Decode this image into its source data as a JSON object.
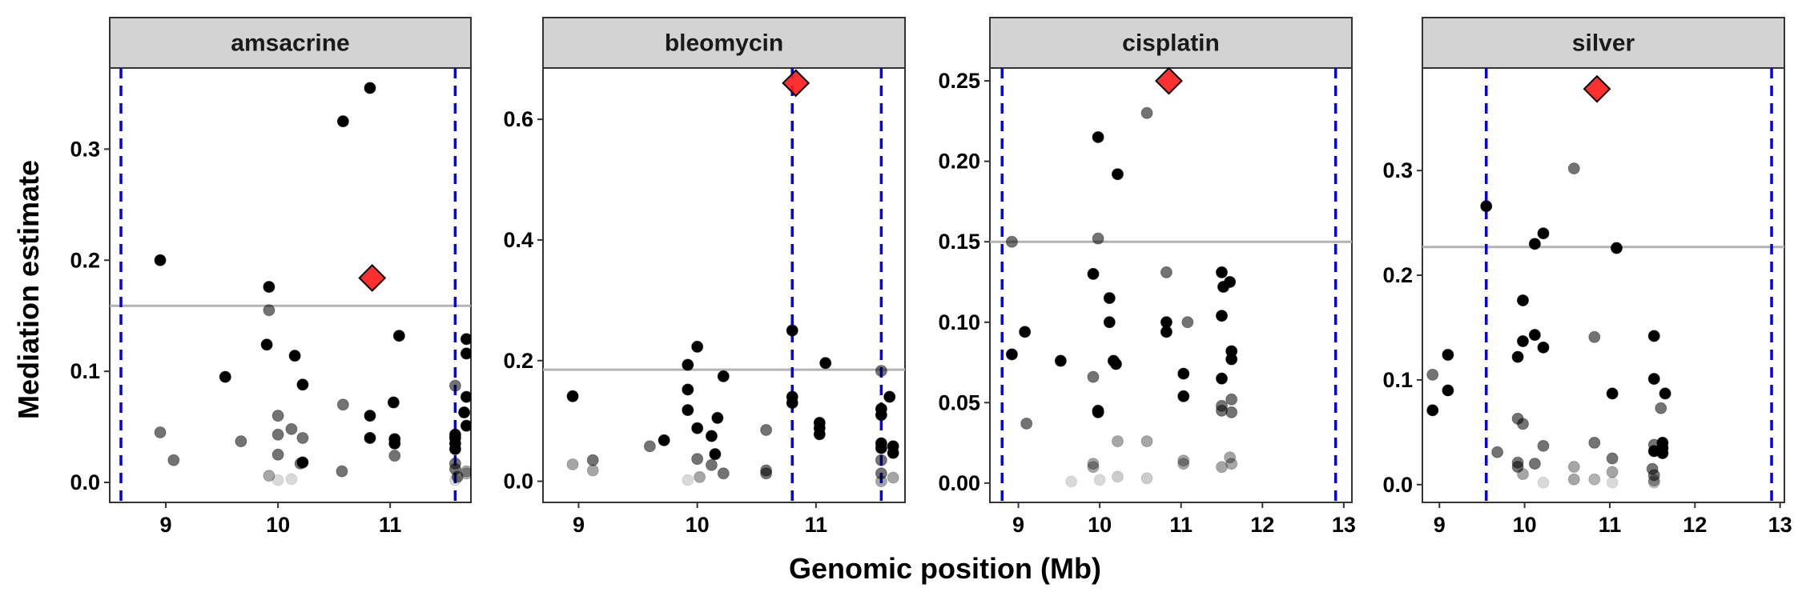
{
  "chart_data": {
    "type": "scatter",
    "xlabel": "Genomic position (Mb)",
    "ylabel": "Mediation estimate",
    "grid": false,
    "colors": {
      "point": "#000000",
      "highlight": "#ff1a1a",
      "threshold": "#b3b3b3",
      "interval": "#0000ee",
      "strip": "#d3d3d3"
    },
    "panels": [
      {
        "title": "amsacrine",
        "xlim": [
          8.5,
          11.72
        ],
        "ylim": [
          -0.018,
          0.373
        ],
        "xticks": [
          9,
          10,
          11
        ],
        "xtick_labels": [
          "9",
          "10",
          "11"
        ],
        "yticks": [
          0,
          0.1,
          0.2,
          0.3
        ],
        "ytick_labels": [
          "0.0",
          "0.1",
          "0.2",
          "0.3"
        ],
        "threshold": 0.159,
        "interval": [
          8.6,
          11.58
        ],
        "highlight": {
          "x": 10.84,
          "y": 0.184
        },
        "points": [
          [
            10.82,
            0.355,
            1
          ],
          [
            10.58,
            0.325,
            1
          ],
          [
            8.95,
            0.2,
            1
          ],
          [
            9.92,
            0.176,
            1
          ],
          [
            9.92,
            0.155,
            0.55
          ],
          [
            9.9,
            0.124,
            1
          ],
          [
            10.15,
            0.114,
            1
          ],
          [
            11.08,
            0.132,
            1
          ],
          [
            11.68,
            0.129,
            1
          ],
          [
            11.68,
            0.116,
            1
          ],
          [
            9.53,
            0.095,
            1
          ],
          [
            10.22,
            0.088,
            1
          ],
          [
            11.58,
            0.087,
            0.55
          ],
          [
            11.68,
            0.077,
            1
          ],
          [
            10.58,
            0.07,
            0.55
          ],
          [
            11.03,
            0.072,
            1
          ],
          [
            10.82,
            0.06,
            1
          ],
          [
            10.0,
            0.06,
            0.55
          ],
          [
            11.66,
            0.063,
            1
          ],
          [
            11.68,
            0.051,
            1
          ],
          [
            10.12,
            0.048,
            0.55
          ],
          [
            8.95,
            0.045,
            0.55
          ],
          [
            10.0,
            0.043,
            0.55
          ],
          [
            10.22,
            0.04,
            0.55
          ],
          [
            11.58,
            0.043,
            1
          ],
          [
            11.58,
            0.04,
            1
          ],
          [
            11.58,
            0.035,
            1
          ],
          [
            11.58,
            0.03,
            1
          ],
          [
            11.04,
            0.039,
            1
          ],
          [
            11.04,
            0.035,
            1
          ],
          [
            10.82,
            0.04,
            1
          ],
          [
            9.67,
            0.037,
            0.55
          ],
          [
            10.0,
            0.025,
            0.55
          ],
          [
            11.04,
            0.024,
            0.55
          ],
          [
            9.07,
            0.02,
            0.55
          ],
          [
            10.22,
            0.018,
            1
          ],
          [
            10.2,
            0.017,
            0.55
          ],
          [
            11.58,
            0.017,
            0.55
          ],
          [
            11.58,
            0.012,
            0.55
          ],
          [
            11.6,
            0.005,
            0.55
          ],
          [
            9.92,
            0.006,
            0.35
          ],
          [
            10.57,
            0.01,
            0.55
          ],
          [
            11.68,
            0.01,
            0.35
          ],
          [
            11.58,
            0.002,
            0.15
          ],
          [
            11.68,
            0.008,
            0.3
          ],
          [
            10.0,
            0.002,
            0.15
          ],
          [
            10.12,
            0.003,
            0.15
          ]
        ]
      },
      {
        "title": "bleomycin",
        "xlim": [
          8.7,
          11.75
        ],
        "ylim": [
          -0.035,
          0.685
        ],
        "xticks": [
          9,
          10,
          11
        ],
        "xtick_labels": [
          "9",
          "10",
          "11"
        ],
        "yticks": [
          0,
          0.2,
          0.4,
          0.6
        ],
        "ytick_labels": [
          "0.0",
          "0.2",
          "0.4",
          "0.6"
        ],
        "threshold": 0.185,
        "interval": [
          10.8,
          11.55
        ],
        "highlight": {
          "x": 10.83,
          "y": 0.66
        },
        "points": [
          [
            10.8,
            0.25,
            1
          ],
          [
            10.0,
            0.223,
            1
          ],
          [
            9.92,
            0.193,
            1
          ],
          [
            11.08,
            0.196,
            1
          ],
          [
            11.55,
            0.183,
            0.55
          ],
          [
            10.22,
            0.174,
            1
          ],
          [
            9.92,
            0.152,
            1
          ],
          [
            8.95,
            0.141,
            1
          ],
          [
            10.8,
            0.14,
            1
          ],
          [
            10.8,
            0.13,
            1
          ],
          [
            11.62,
            0.14,
            1
          ],
          [
            9.92,
            0.118,
            1
          ],
          [
            11.55,
            0.12,
            1
          ],
          [
            11.55,
            0.11,
            1
          ],
          [
            10.17,
            0.105,
            1
          ],
          [
            11.03,
            0.097,
            1
          ],
          [
            11.03,
            0.088,
            1
          ],
          [
            10.0,
            0.088,
            1
          ],
          [
            11.03,
            0.078,
            1
          ],
          [
            10.12,
            0.075,
            1
          ],
          [
            9.72,
            0.068,
            1
          ],
          [
            9.6,
            0.058,
            0.55
          ],
          [
            11.55,
            0.063,
            1
          ],
          [
            11.55,
            0.055,
            1
          ],
          [
            11.65,
            0.058,
            1
          ],
          [
            11.65,
            0.047,
            1
          ],
          [
            10.15,
            0.045,
            1
          ],
          [
            10.58,
            0.085,
            0.55
          ],
          [
            10.0,
            0.037,
            0.55
          ],
          [
            11.55,
            0.035,
            0.55
          ],
          [
            10.12,
            0.027,
            0.55
          ],
          [
            9.12,
            0.035,
            0.55
          ],
          [
            8.95,
            0.028,
            0.35
          ],
          [
            9.12,
            0.018,
            0.35
          ],
          [
            10.58,
            0.018,
            0.55
          ],
          [
            10.58,
            0.013,
            0.55
          ],
          [
            10.22,
            0.013,
            0.55
          ],
          [
            11.55,
            0.013,
            0.55
          ],
          [
            10.02,
            0.007,
            0.35
          ],
          [
            9.92,
            0.002,
            0.15
          ],
          [
            11.55,
            0.0,
            0.35
          ],
          [
            11.65,
            0.006,
            0.35
          ]
        ]
      },
      {
        "title": "cisplatin",
        "xlim": [
          8.65,
          13.1
        ],
        "ylim": [
          -0.012,
          0.258
        ],
        "xticks": [
          9,
          10,
          11,
          12,
          13
        ],
        "xtick_labels": [
          "9",
          "10",
          "11",
          "12",
          "13"
        ],
        "yticks": [
          0,
          0.05,
          0.1,
          0.15,
          0.2,
          0.25
        ],
        "ytick_labels": [
          "0.00",
          "0.05",
          "0.10",
          "0.15",
          "0.20",
          "0.25"
        ],
        "threshold": 0.15,
        "interval": [
          8.8,
          12.9
        ],
        "highlight": {
          "x": 10.85,
          "y": 0.25
        },
        "points": [
          [
            10.58,
            0.23,
            0.55
          ],
          [
            9.98,
            0.215,
            1
          ],
          [
            10.22,
            0.192,
            1
          ],
          [
            9.98,
            0.152,
            0.55
          ],
          [
            8.92,
            0.15,
            0.55
          ],
          [
            9.92,
            0.13,
            1
          ],
          [
            10.82,
            0.131,
            0.55
          ],
          [
            11.5,
            0.131,
            1
          ],
          [
            11.52,
            0.122,
            1
          ],
          [
            11.6,
            0.125,
            1
          ],
          [
            10.12,
            0.115,
            1
          ],
          [
            11.5,
            0.104,
            1
          ],
          [
            10.82,
            0.1,
            1
          ],
          [
            11.08,
            0.1,
            0.55
          ],
          [
            10.12,
            0.1,
            1
          ],
          [
            10.82,
            0.094,
            1
          ],
          [
            9.08,
            0.094,
            1
          ],
          [
            11.62,
            0.082,
            1
          ],
          [
            8.92,
            0.08,
            1
          ],
          [
            11.62,
            0.077,
            1
          ],
          [
            9.52,
            0.076,
            1
          ],
          [
            10.17,
            0.076,
            1
          ],
          [
            10.2,
            0.074,
            1
          ],
          [
            11.03,
            0.068,
            1
          ],
          [
            9.92,
            0.066,
            0.55
          ],
          [
            11.5,
            0.065,
            1
          ],
          [
            11.03,
            0.054,
            1
          ],
          [
            11.62,
            0.052,
            0.55
          ],
          [
            11.5,
            0.048,
            0.55
          ],
          [
            11.5,
            0.045,
            0.55
          ],
          [
            11.62,
            0.044,
            0.55
          ],
          [
            9.98,
            0.045,
            1
          ],
          [
            9.98,
            0.044,
            1
          ],
          [
            9.1,
            0.037,
            0.55
          ],
          [
            10.22,
            0.026,
            0.35
          ],
          [
            10.58,
            0.026,
            0.35
          ],
          [
            11.6,
            0.016,
            0.35
          ],
          [
            11.03,
            0.014,
            0.35
          ],
          [
            11.03,
            0.012,
            0.35
          ],
          [
            9.92,
            0.012,
            0.35
          ],
          [
            9.92,
            0.01,
            0.35
          ],
          [
            11.62,
            0.012,
            0.35
          ],
          [
            11.5,
            0.01,
            0.35
          ],
          [
            10.22,
            0.004,
            0.2
          ],
          [
            10.58,
            0.003,
            0.2
          ],
          [
            9.65,
            0.001,
            0.15
          ],
          [
            10.0,
            0.002,
            0.15
          ]
        ]
      },
      {
        "title": "silver",
        "xlim": [
          8.8,
          13.05
        ],
        "ylim": [
          -0.017,
          0.398
        ],
        "xticks": [
          9,
          10,
          11,
          12,
          13
        ],
        "xtick_labels": [
          "9",
          "10",
          "11",
          "12",
          "13"
        ],
        "yticks": [
          0,
          0.1,
          0.2,
          0.3
        ],
        "ytick_labels": [
          "0.0",
          "0.1",
          "0.2",
          "0.3"
        ],
        "threshold": 0.227,
        "interval": [
          9.55,
          12.9
        ],
        "highlight": {
          "x": 10.85,
          "y": 0.378
        },
        "points": [
          [
            10.58,
            0.302,
            0.55
          ],
          [
            9.55,
            0.266,
            1
          ],
          [
            10.22,
            0.24,
            1
          ],
          [
            10.12,
            0.23,
            1
          ],
          [
            11.08,
            0.226,
            1
          ],
          [
            9.98,
            0.176,
            1
          ],
          [
            10.82,
            0.141,
            0.55
          ],
          [
            10.12,
            0.143,
            1
          ],
          [
            11.52,
            0.142,
            1
          ],
          [
            9.98,
            0.137,
            1
          ],
          [
            10.22,
            0.131,
            1
          ],
          [
            9.1,
            0.124,
            1
          ],
          [
            9.92,
            0.122,
            1
          ],
          [
            8.92,
            0.105,
            0.55
          ],
          [
            11.52,
            0.101,
            1
          ],
          [
            9.1,
            0.09,
            1
          ],
          [
            11.65,
            0.087,
            1
          ],
          [
            11.03,
            0.087,
            1
          ],
          [
            11.6,
            0.073,
            0.55
          ],
          [
            8.92,
            0.071,
            1
          ],
          [
            9.92,
            0.063,
            0.55
          ],
          [
            9.98,
            0.058,
            0.55
          ],
          [
            10.82,
            0.04,
            0.55
          ],
          [
            10.22,
            0.037,
            0.55
          ],
          [
            11.52,
            0.038,
            0.55
          ],
          [
            11.62,
            0.04,
            1
          ],
          [
            11.62,
            0.035,
            1
          ],
          [
            11.52,
            0.032,
            1
          ],
          [
            11.62,
            0.03,
            1
          ],
          [
            9.68,
            0.031,
            0.55
          ],
          [
            11.03,
            0.025,
            0.55
          ],
          [
            9.92,
            0.021,
            0.55
          ],
          [
            10.12,
            0.02,
            0.55
          ],
          [
            9.92,
            0.017,
            0.55
          ],
          [
            11.5,
            0.015,
            0.55
          ],
          [
            10.58,
            0.017,
            0.35
          ],
          [
            9.98,
            0.01,
            0.35
          ],
          [
            11.03,
            0.012,
            0.35
          ],
          [
            11.52,
            0.009,
            0.55
          ],
          [
            10.58,
            0.005,
            0.35
          ],
          [
            11.52,
            0.004,
            0.35
          ],
          [
            11.52,
            0.002,
            0.25
          ],
          [
            10.82,
            0.005,
            0.3
          ],
          [
            10.22,
            0.002,
            0.15
          ],
          [
            11.03,
            0.002,
            0.15
          ]
        ]
      }
    ]
  }
}
